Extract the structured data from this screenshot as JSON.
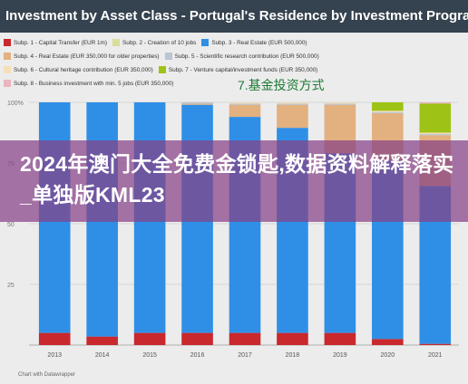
{
  "title": "Investment by Asset Class - Portugal's Residence by Investment Program",
  "legend": [
    {
      "label": "Subp. 1 - Capital Transfer (EUR 1m)",
      "color": "#c9282c"
    },
    {
      "label": "Subp. 2 - Creation of 10 jobs",
      "color": "#d9de9a"
    },
    {
      "label": "Subp. 3 - Real Estate (EUR 500,000)",
      "color": "#2f8fe6"
    },
    {
      "label": "Subp. 4 - Real Estate (EUR 350,000 for older properties)",
      "color": "#e3b07f"
    },
    {
      "label": "Subp. 5 - Scientific research contribution (EUR 500,000)",
      "color": "#b9c6d4"
    },
    {
      "label": "Subp. 6 - Cultural heritage contribution (EUR 350,000)",
      "color": "#f5dfb8"
    },
    {
      "label": "Subp. 7 - Venture capital/investment funds (EUR 350,000)",
      "color": "#9ec317"
    },
    {
      "label": "Subp. 8 - Business investment with min. 5 jobs (EUR 350,000)",
      "color": "#eab5bd"
    }
  ],
  "annotation": "7.基金投资方式",
  "overlay_text": "2024年澳门大全免费金锁匙,数据资料解释落实_单独版KML23",
  "footer": "Chart with Datawrapper",
  "chart_data": {
    "type": "bar",
    "stacked": true,
    "normalized_percent": true,
    "categories": [
      "2013",
      "2014",
      "2015",
      "2016",
      "2017",
      "2018",
      "2019",
      "2020",
      "2021"
    ],
    "y_ticks": [
      "100%",
      "75",
      "50",
      "25"
    ],
    "ylim": [
      0,
      100
    ],
    "grid": true,
    "legend_position": "top",
    "series": [
      {
        "name": "Subp. 1 - Capital Transfer (EUR 1m)",
        "color": "#c9282c",
        "values": [
          5,
          3.5,
          5,
          5,
          5,
          5,
          5,
          2.5,
          0.5
        ]
      },
      {
        "name": "Subp. 2 - Creation of 10 jobs",
        "color": "#d9de9a",
        "values": [
          0,
          0,
          0,
          0,
          0,
          0,
          0,
          0,
          0
        ]
      },
      {
        "name": "Subp. 3 - Real Estate (EUR 500,000)",
        "color": "#2f8fe6",
        "values": [
          95,
          96.5,
          95,
          94,
          89,
          84.5,
          74,
          73.5,
          65
        ]
      },
      {
        "name": "Subp. 4 - Real Estate (EUR 350,000 for older properties)",
        "color": "#e3b07f",
        "values": [
          0,
          0,
          0,
          0.5,
          5,
          9.5,
          20,
          19.5,
          21
        ]
      },
      {
        "name": "Subp. 5 - Scientific research contribution (EUR 500,000)",
        "color": "#b9c6d4",
        "values": [
          0,
          0,
          0,
          0.5,
          0.5,
          0.5,
          0.5,
          0.5,
          0.5
        ]
      },
      {
        "name": "Subp. 6 - Cultural heritage contribution (EUR 350,000)",
        "color": "#f5dfb8",
        "values": [
          0,
          0,
          0,
          0,
          0.5,
          0.5,
          0.5,
          0.5,
          0.5
        ]
      },
      {
        "name": "Subp. 7 - Venture capital/investment funds (EUR 350,000)",
        "color": "#9ec317",
        "values": [
          0,
          0,
          0,
          0,
          0,
          0,
          0,
          3.5,
          12
        ]
      },
      {
        "name": "Subp. 8 - Business investment with min. 5 jobs (EUR 350,000)",
        "color": "#eab5bd",
        "values": [
          0,
          0,
          0,
          0,
          0,
          0,
          0,
          0,
          0.5
        ]
      }
    ]
  }
}
